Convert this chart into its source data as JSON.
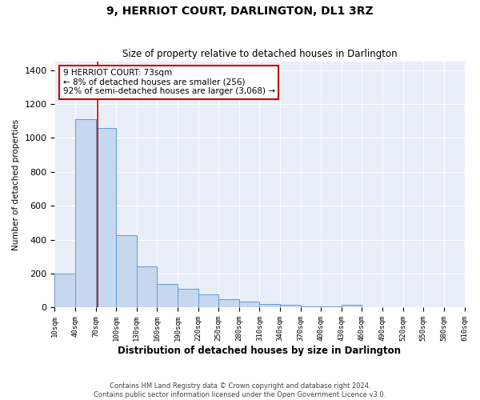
{
  "title": "9, HERRIOT COURT, DARLINGTON, DL1 3RZ",
  "subtitle": "Size of property relative to detached houses in Darlington",
  "xlabel": "Distribution of detached houses by size in Darlington",
  "ylabel": "Number of detached properties",
  "annotation_title": "9 HERRIOT COURT: 73sqm",
  "annotation_line1": "← 8% of detached houses are smaller (256)",
  "annotation_line2": "92% of semi-detached houses are larger (3,068) →",
  "property_size": 73,
  "bar_color": "#c5d8f0",
  "bar_edge_color": "#6699cc",
  "vline_color": "#cc0000",
  "annotation_box_color": "#cc0000",
  "background_color": "#e8eef8",
  "footer_line1": "Contains HM Land Registry data © Crown copyright and database right 2024.",
  "footer_line2": "Contains public sector information licensed under the Open Government Licence v3.0.",
  "bin_edges": [
    10,
    40,
    70,
    100,
    130,
    160,
    190,
    220,
    250,
    280,
    310,
    340,
    370,
    400,
    430,
    460,
    490,
    520,
    550,
    580,
    610
  ],
  "bin_counts": [
    200,
    1110,
    1060,
    425,
    245,
    140,
    110,
    80,
    50,
    35,
    20,
    18,
    5,
    5,
    15,
    3,
    3,
    3,
    0,
    0
  ],
  "tick_labels": [
    "10sqm",
    "40sqm",
    "70sqm",
    "100sqm",
    "130sqm",
    "160sqm",
    "190sqm",
    "220sqm",
    "250sqm",
    "280sqm",
    "310sqm",
    "340sqm",
    "370sqm",
    "400sqm",
    "430sqm",
    "460sqm",
    "490sqm",
    "520sqm",
    "550sqm",
    "580sqm",
    "610sqm"
  ],
  "ylim": [
    0,
    1450
  ],
  "yticks": [
    0,
    200,
    400,
    600,
    800,
    1000,
    1200,
    1400
  ]
}
